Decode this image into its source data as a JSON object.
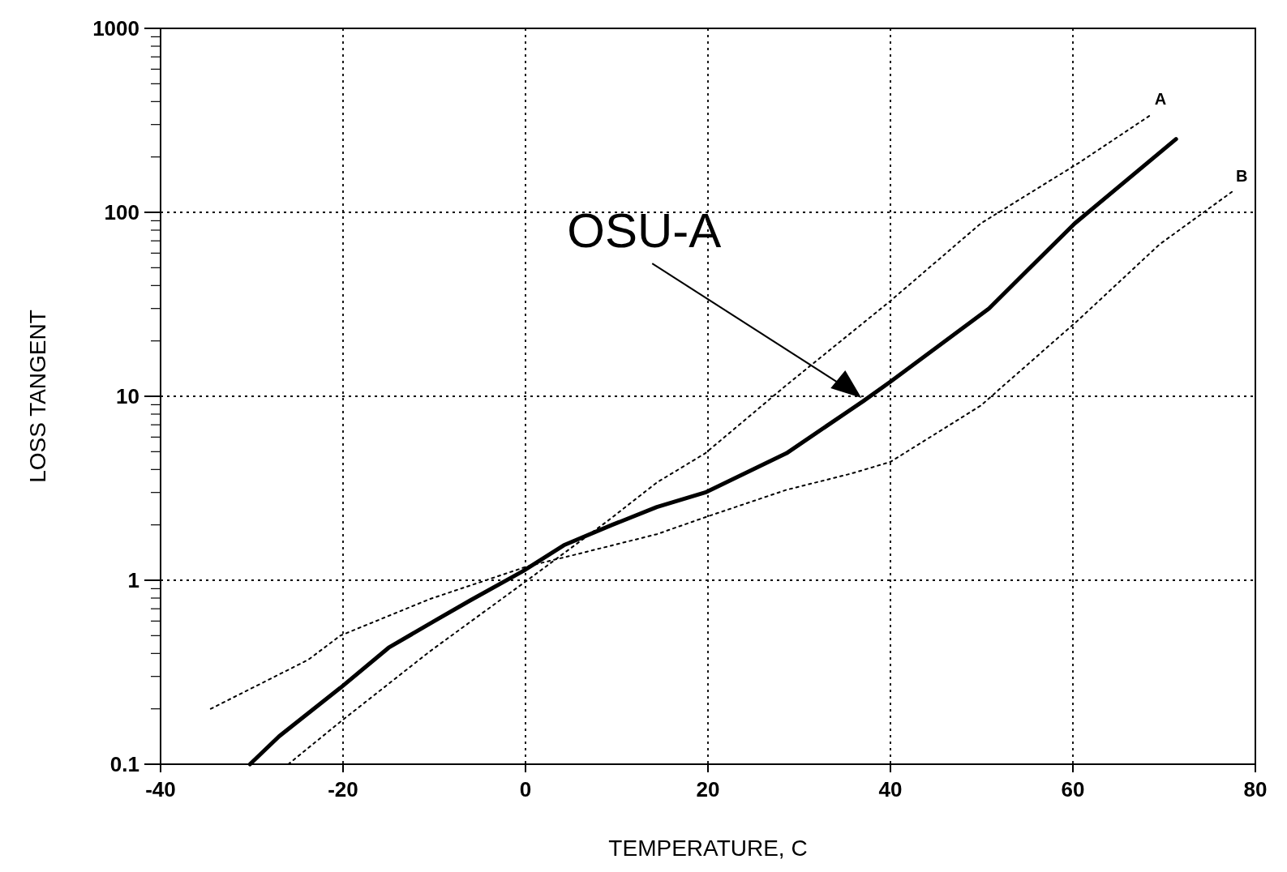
{
  "chart_data": {
    "type": "line",
    "xlabel": "TEMPERATURE, C",
    "ylabel": "LOSS TANGENT",
    "xlim": [
      -40,
      80
    ],
    "ylim": [
      0.1,
      1000
    ],
    "xticks": [
      -40,
      -20,
      0,
      20,
      40,
      60,
      80
    ],
    "yticks": [
      0.1,
      1,
      10,
      100,
      1000
    ],
    "log": "y",
    "grid": true,
    "annotations": [
      "OSU-A"
    ],
    "series": [
      {
        "color": "#000000",
        "line_style": "solid",
        "x": [
          -30.2,
          -27,
          -20.3,
          -15,
          -10,
          -6,
          -0.3,
          4.2,
          9.5,
          14.4,
          19.7,
          28.6,
          37,
          40,
          50.8,
          60.2,
          71.3
        ],
        "values": [
          0.1,
          0.142,
          0.26,
          0.43,
          0.6,
          0.78,
          1.12,
          1.55,
          2.0,
          2.5,
          3.0,
          4.9,
          9.4,
          12,
          30,
          87,
          250
        ]
      },
      {
        "name": "A",
        "color": "#000000",
        "line_style": "dotted",
        "x": [
          -26,
          -20.3,
          -10.5,
          0.2,
          9,
          14.4,
          19.7,
          28.6,
          40,
          49.9,
          60.6,
          68.6
        ],
        "values": [
          0.1,
          0.17,
          0.41,
          1.0,
          2.1,
          3.4,
          4.9,
          11.5,
          33,
          87,
          185,
          340
        ]
      },
      {
        "name": "B",
        "color": "#000000",
        "line_style": "dotted",
        "x": [
          -34.5,
          -23.8,
          -20.3,
          -10.5,
          0.2,
          5.5,
          14.4,
          19.7,
          28.6,
          35.7,
          40,
          49.9,
          60.6,
          69.5,
          77.5
        ],
        "values": [
          0.2,
          0.37,
          0.5,
          0.79,
          1.19,
          1.38,
          1.78,
          2.2,
          3.1,
          3.8,
          4.4,
          8.9,
          26,
          67,
          130
        ]
      }
    ]
  }
}
